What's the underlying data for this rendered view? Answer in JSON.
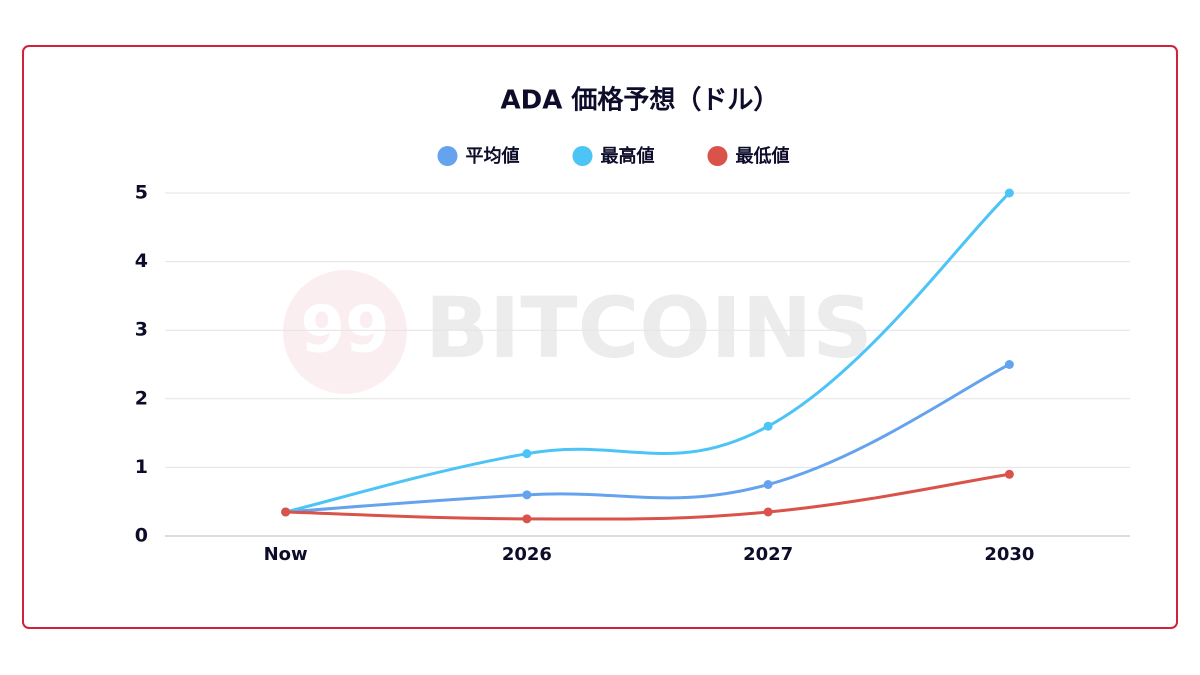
{
  "chart_data": {
    "type": "line",
    "title": "ADA 価格予想（ドル）",
    "categories": [
      "Now",
      "2026",
      "2027",
      "2030"
    ],
    "series": [
      {
        "name": "平均値",
        "color": "#66a3ee",
        "values": [
          0.35,
          0.6,
          0.75,
          2.5
        ]
      },
      {
        "name": "最高値",
        "color": "#4cc4f6",
        "values": [
          0.35,
          1.2,
          1.6,
          5
        ]
      },
      {
        "name": "最低値",
        "color": "#d9534a",
        "values": [
          0.35,
          0.25,
          0.35,
          0.9
        ]
      }
    ],
    "ylim": [
      0,
      5
    ],
    "yticks": [
      0,
      1,
      2,
      3,
      4,
      5
    ],
    "grid": true,
    "legend": "top",
    "watermark": {
      "logo": "99",
      "text": "BITCOINS"
    }
  }
}
